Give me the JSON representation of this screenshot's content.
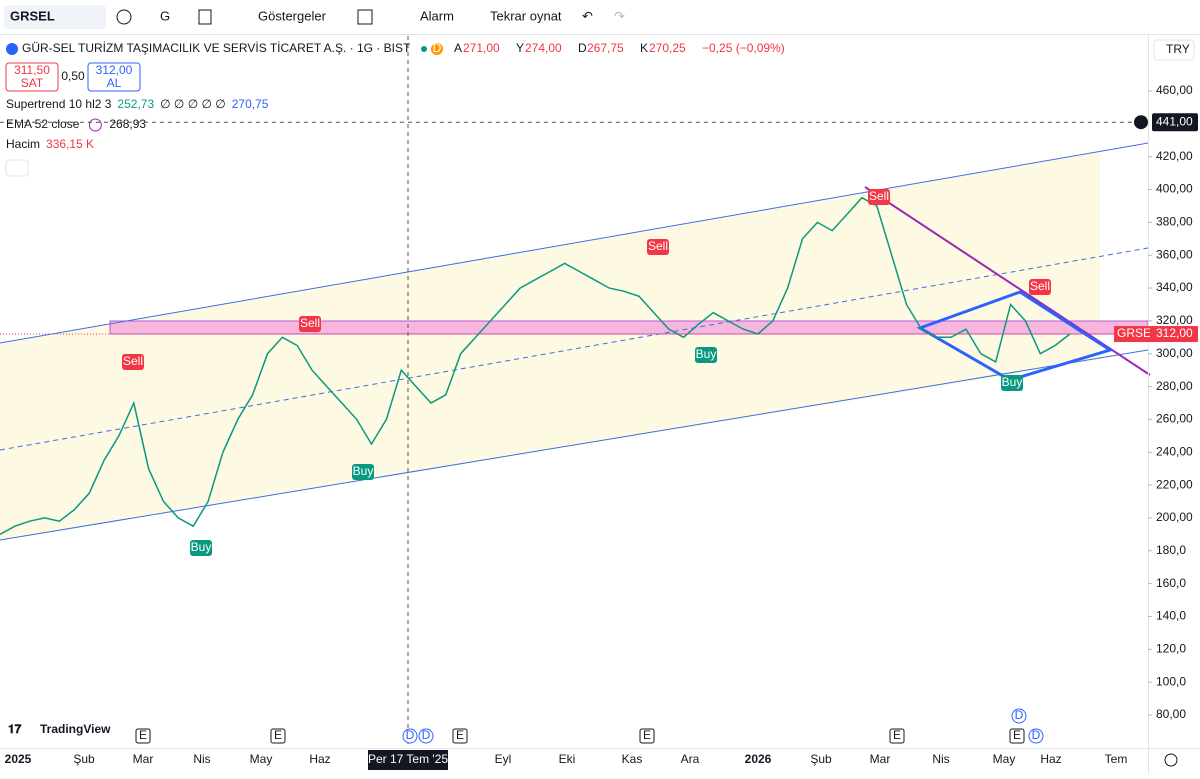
{
  "toolbar": {
    "symbol": "GRSEL",
    "interval": "G",
    "indicators": "Göstergeler",
    "alarm": "Alarm",
    "replay": "Tekrar oynat"
  },
  "legend": {
    "title": "GÜR-SEL TURİZM TAŞIMACILIK VE SERVİS TİCARET A.Ş. · 1G · BIST",
    "badge": "D",
    "ohlc": [
      {
        "key": "A",
        "value": "271,00"
      },
      {
        "key": "Y",
        "value": "274,00"
      },
      {
        "key": "D",
        "value": "267,75"
      },
      {
        "key": "K",
        "value": "270,25"
      }
    ],
    "change": "−0,25 (−0,09%)",
    "sell": {
      "price": "311,50",
      "label": "SAT"
    },
    "spread": "0,50",
    "buy": {
      "price": "312,00",
      "label": "AL"
    },
    "indicators": [
      {
        "name": "Supertrend 10 hl2 3",
        "values": [
          "252,73",
          "∅ ∅ ∅ ∅ ∅",
          "270,75"
        ]
      },
      {
        "name": "EMA 52 close",
        "values": [
          "268,93"
        ]
      },
      {
        "name": "Hacim",
        "values": [
          "336,15 K"
        ]
      }
    ]
  },
  "price_axis": {
    "currency": "TRY",
    "ticks": [
      {
        "value": 460,
        "label": "460,00"
      },
      {
        "value": 420,
        "label": "420,00"
      },
      {
        "value": 400,
        "label": "400,00"
      },
      {
        "value": 380,
        "label": "380,00"
      },
      {
        "value": 360,
        "label": "360,00"
      },
      {
        "value": 340,
        "label": "340,00"
      },
      {
        "value": 320,
        "label": "320,00"
      },
      {
        "value": 300,
        "label": "300,00"
      },
      {
        "value": 280,
        "label": "280,00"
      },
      {
        "value": 260,
        "label": "260,00"
      },
      {
        "value": 240,
        "label": "240,00"
      },
      {
        "value": 220,
        "label": "220,00"
      },
      {
        "value": 200,
        "label": "200,00"
      },
      {
        "value": 180,
        "label": "180,0"
      },
      {
        "value": 160,
        "label": "160,0"
      },
      {
        "value": 140,
        "label": "140,0"
      },
      {
        "value": 120,
        "label": "120,0"
      },
      {
        "value": 100,
        "label": "100,0"
      },
      {
        "value": 80,
        "label": "80,00"
      }
    ],
    "crosshair": {
      "value": 441,
      "label": "441,00"
    },
    "last": {
      "symbol": "GRSEL",
      "value": 312,
      "label": "312,00"
    }
  },
  "time_axis": {
    "labels": [
      "2025",
      "Şub",
      "Mar",
      "Nis",
      "May",
      "Haz",
      "Per 17 Tem '25",
      "Eyl",
      "Eki",
      "Kas",
      "Ara",
      "2026",
      "Şub",
      "Mar",
      "Nis",
      "May",
      "Haz",
      "Tem"
    ]
  },
  "signals": [
    "Sell",
    "Sell",
    "Buy",
    "Buy",
    "Sell",
    "Buy",
    "Sell",
    "Sell",
    "Buy"
  ],
  "events": [
    "E",
    "E",
    "E",
    "E",
    "E",
    "E",
    "D",
    "D",
    "D",
    "D"
  ],
  "price_series": {
    "closes": [
      190,
      195,
      198,
      200,
      198,
      205,
      215,
      235,
      250,
      270,
      230,
      210,
      200,
      195,
      210,
      240,
      260,
      275,
      300,
      310,
      305,
      290,
      280,
      270,
      260,
      245,
      260,
      290,
      280,
      270,
      275,
      300,
      310,
      320,
      330,
      340,
      345,
      350,
      355,
      350,
      345,
      340,
      338,
      335,
      325,
      315,
      310,
      318,
      325,
      320,
      315,
      312,
      320,
      340,
      370,
      380,
      375,
      385,
      395,
      390,
      360,
      330,
      315,
      310,
      310,
      315,
      300,
      295,
      330,
      320,
      300,
      305,
      312
    ]
  },
  "brand": "TradingView"
}
